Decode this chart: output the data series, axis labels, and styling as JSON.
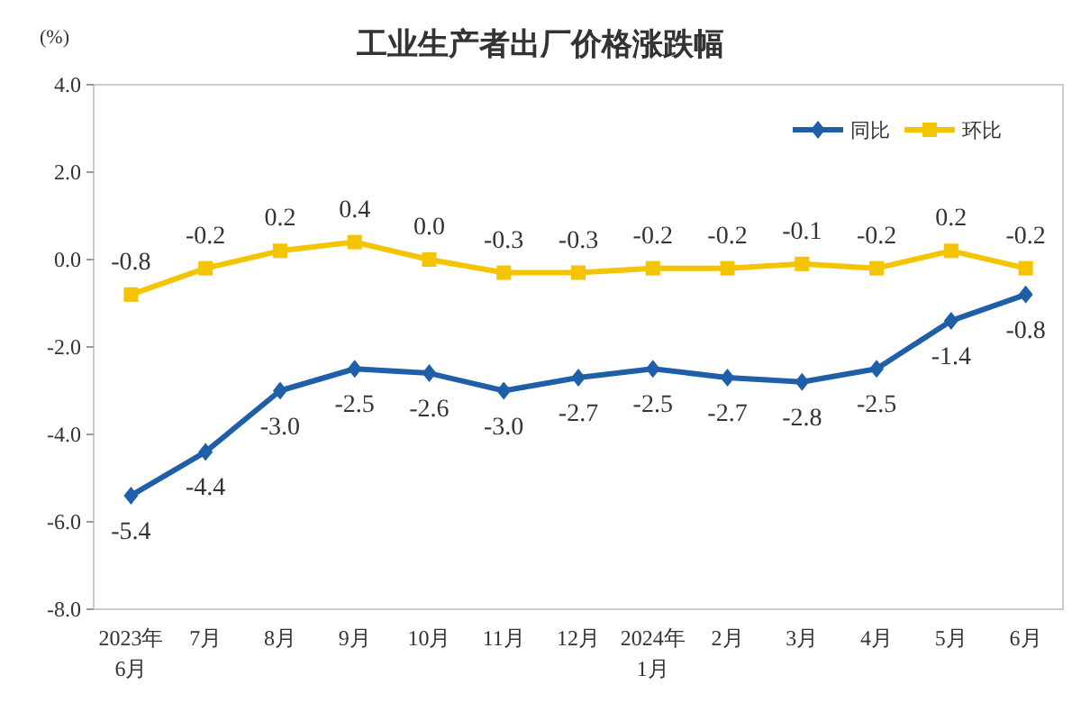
{
  "chart_data": {
    "type": "line",
    "title": "工业生产者出厂价格涨跌幅",
    "ylabel": "(%)",
    "categories": [
      "2023年\n6月",
      "7月",
      "8月",
      "9月",
      "10月",
      "11月",
      "12月",
      "2024年\n1月",
      "2月",
      "3月",
      "4月",
      "5月",
      "6月"
    ],
    "series": [
      {
        "name": "同比",
        "color": "#1f5fa8",
        "marker": "diamond",
        "values": [
          -5.4,
          -4.4,
          -3.0,
          -2.5,
          -2.6,
          -3.0,
          -2.7,
          -2.5,
          -2.7,
          -2.8,
          -2.5,
          -1.4,
          -0.8
        ],
        "value_labels": [
          "-5.4",
          "-4.4",
          "-3.0",
          "-2.5",
          "-2.6",
          "-3.0",
          "-2.7",
          "-2.5",
          "-2.7",
          "-2.8",
          "-2.5",
          "-1.4",
          "-0.8"
        ]
      },
      {
        "name": "环比",
        "color": "#f5c400",
        "marker": "square",
        "values": [
          -0.8,
          -0.2,
          0.2,
          0.4,
          0.0,
          -0.3,
          -0.3,
          -0.2,
          -0.2,
          -0.1,
          -0.2,
          0.2,
          -0.2
        ],
        "value_labels": [
          "-0.8",
          "-0.2",
          "0.2",
          "0.4",
          "0.0",
          "-0.3",
          "-0.3",
          "-0.2",
          "-0.2",
          "-0.1",
          "-0.2",
          "0.2",
          "-0.2"
        ]
      }
    ],
    "ylim": [
      -8.0,
      4.0
    ],
    "yticks": [
      {
        "value": 4.0,
        "label": "4.0"
      },
      {
        "value": 2.0,
        "label": "2.0"
      },
      {
        "value": 0.0,
        "label": "0.0"
      },
      {
        "value": -2.0,
        "label": "-2.0"
      },
      {
        "value": -4.0,
        "label": "-4.0"
      },
      {
        "value": -6.0,
        "label": "-6.0"
      },
      {
        "value": -8.0,
        "label": "-8.0"
      }
    ],
    "legend": "top right"
  }
}
